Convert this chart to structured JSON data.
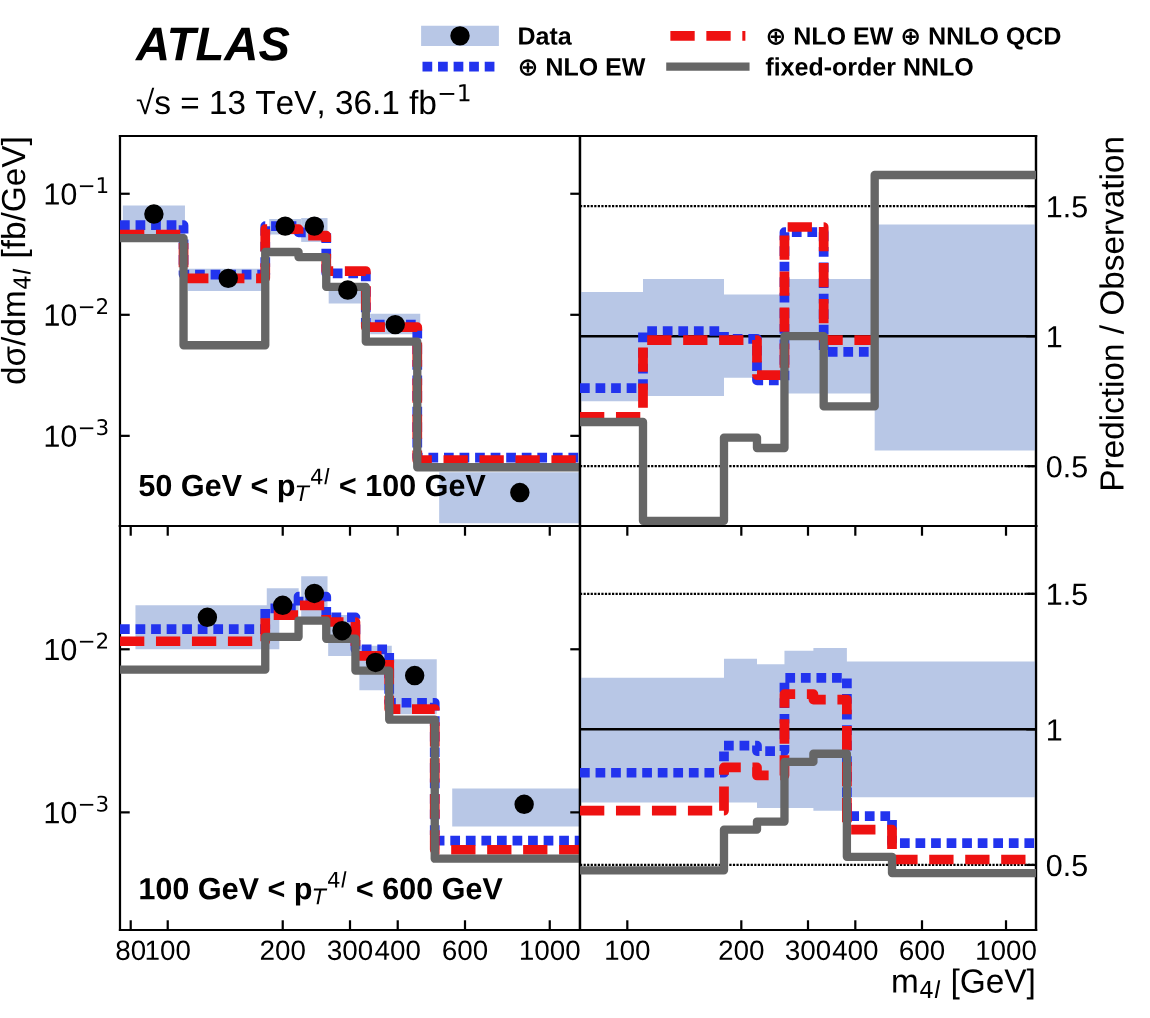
{
  "chart_data": [
    {
      "type": "step",
      "title": "ATLAS",
      "subtitle": "√s = 13 TeV, 36.1 fb$^{−1}$",
      "ylabel": "dσ/dm$_{4l}$ [fb/GeV]",
      "legend": "top",
      "log": "xy",
      "tick_labels": "y",
      "xlim": [
        75,
        1200
      ],
      "ylim": [
        0.00018,
        0.3
      ],
      "yticks": [
        {
          "value": 0.1,
          "label": "10$^{−1}$"
        },
        {
          "value": 0.01,
          "label": "10$^{−2}$"
        },
        {
          "value": 0.001,
          "label": "10$^{−3}$"
        }
      ],
      "annotations": [
        "50 GeV < p$_{T}$$^{4l}$ < 100 GeV"
      ],
      "series": [
        {
          "name": "Data",
          "type": "scatter",
          "marker": "circle",
          "color": "#000000",
          "x": [
            92,
            144,
            203,
            242,
            296,
            394,
            835
          ],
          "values": [
            0.068,
            0.02,
            0.054,
            0.054,
            0.016,
            0.0083,
            0.00034
          ],
          "errors": [
            [
              0.041,
              0.08
            ],
            [
              0.0157,
              0.024
            ],
            [
              0.046,
              0.062
            ],
            [
              0.04,
              0.063
            ],
            [
              0.0124,
              0.018
            ],
            [
              0.0069,
              0.0102
            ],
            [
              0.00019,
              0.0005
            ]
          ]
        },
        {
          "name": "⊕ NLO EW",
          "type": "step",
          "color": "#2233ee",
          "line_style": "dotted",
          "x": [
            75,
            110,
            180,
            220,
            260,
            330,
            450,
            1200
          ],
          "values": [
            0.055,
            0.0215,
            0.054,
            0.048,
            0.022,
            0.0083,
            0.00066,
            0.00066
          ]
        },
        {
          "name": "⊕ NLO EW ⊕ NNLO QCD",
          "type": "step",
          "color": "#ee1111",
          "line_style": "dashed",
          "x": [
            75,
            110,
            180,
            220,
            260,
            330,
            450,
            1200
          ],
          "values": [
            0.046,
            0.02,
            0.051,
            0.045,
            0.023,
            0.0079,
            0.00063,
            0.00063
          ]
        },
        {
          "name": "fixed-order NNLO",
          "type": "step",
          "color": "#666666",
          "line_style": "solid",
          "x": [
            75,
            110,
            180,
            220,
            260,
            330,
            450,
            1200
          ],
          "values": [
            0.043,
            0.0056,
            0.033,
            0.03,
            0.017,
            0.006,
            0.00055,
            0.00055
          ]
        }
      ]
    },
    {
      "type": "step",
      "y2label": "Prediction / Observation",
      "log": "x",
      "tick_labels": "y",
      "xlim": [
        75,
        1200
      ],
      "y2lim": [
        0.27,
        1.77
      ],
      "y2ticks": [
        0.5,
        1,
        1.5
      ],
      "ref_lines": [
        {
          "axis": "y2",
          "value": 0.5,
          "color": "#000000",
          "line_style": "dotted"
        },
        {
          "axis": "y2",
          "value": 1.5,
          "color": "#000000",
          "line_style": "dotted"
        }
      ],
      "series": [
        {
          "axis": "y2",
          "color": "#000000",
          "line_style": "solid",
          "x": [
            75,
            110,
            180,
            220,
            260,
            330,
            450,
            1200
          ],
          "values": [
            1,
            1,
            1,
            1,
            1,
            1,
            1,
            1
          ],
          "lower": [
            0.75,
            0.77,
            0.84,
            0.84,
            0.78,
            0.78,
            0.56,
            0.56
          ],
          "upper": [
            1.17,
            1.22,
            1.16,
            1.16,
            1.22,
            1.22,
            1.43,
            1.43
          ]
        },
        {
          "type": "step",
          "axis": "y2",
          "color": "#2233ee",
          "line_style": "dotted",
          "x": [
            75,
            110,
            180,
            220,
            260,
            330,
            450
          ],
          "values": [
            0.8,
            1.02,
            0.99,
            0.83,
            1.4,
            0.94,
            0.94
          ]
        },
        {
          "type": "step",
          "axis": "y2",
          "color": "#ee1111",
          "line_style": "dashed",
          "x": [
            75,
            110,
            180,
            220,
            260,
            330,
            450
          ],
          "values": [
            0.69,
            0.985,
            0.985,
            0.85,
            1.42,
            0.985,
            0.985
          ]
        },
        {
          "type": "step",
          "axis": "y2",
          "color": "#666666",
          "line_style": "solid",
          "x": [
            75,
            110,
            180,
            220,
            260,
            330,
            450,
            1200
          ],
          "values": [
            0.67,
            0.29,
            0.61,
            0.57,
            1.0,
            0.73,
            1.62,
            1.62
          ]
        }
      ]
    },
    {
      "type": "step",
      "log": "xy",
      "xlim": [
        75,
        1200
      ],
      "ylim": [
        0.00019,
        0.057
      ],
      "xticks": [
        80,
        100,
        200,
        300,
        400,
        600,
        1000
      ],
      "yticks": [
        {
          "value": 0.01,
          "label": "10$^{−2}$"
        },
        {
          "value": 0.001,
          "label": "10$^{−3}$"
        }
      ],
      "annotations": [
        "100 GeV < p$_{T}$$^{4l}$ < 600 GeV"
      ],
      "series": [
        {
          "type": "scatter",
          "marker": "circle",
          "color": "#000000",
          "x": [
            127,
            200,
            242,
            286,
            350,
            443,
            857
          ],
          "values": [
            0.0157,
            0.0186,
            0.022,
            0.013,
            0.0083,
            0.0069,
            0.00112
          ],
          "errors": [
            [
              0.01,
              0.0186
            ],
            [
              0.0154,
              0.0237
            ],
            [
              0.0154,
              0.028
            ],
            [
              0.0091,
              0.0162
            ],
            [
              0.0056,
              0.0105
            ],
            [
              0.004,
              0.0087
            ],
            [
              0.00082,
              0.0014
            ]
          ]
        },
        {
          "type": "step",
          "color": "#2233ee",
          "line_style": "dotted",
          "x": [
            75,
            180,
            220,
            260,
            310,
            380,
            500,
            1200
          ],
          "values": [
            0.0133,
            0.0178,
            0.021,
            0.0157,
            0.01,
            0.0047,
            0.00067,
            0.00067
          ]
        },
        {
          "type": "step",
          "color": "#ee1111",
          "line_style": "dashed",
          "x": [
            75,
            180,
            220,
            260,
            310,
            380,
            500,
            1200
          ],
          "values": [
            0.0112,
            0.0162,
            0.0186,
            0.0147,
            0.0091,
            0.0043,
            0.00059,
            0.00059
          ]
        },
        {
          "type": "step",
          "color": "#666666",
          "line_style": "solid",
          "x": [
            75,
            180,
            220,
            260,
            310,
            380,
            500,
            1200
          ],
          "values": [
            0.0075,
            0.0119,
            0.015,
            0.0116,
            0.0074,
            0.0037,
            0.00052,
            0.00052
          ]
        }
      ]
    },
    {
      "type": "step",
      "xlabel": "m$_{4l}$ [GeV]",
      "log": "x",
      "xlim": [
        75,
        1200
      ],
      "y2lim": [
        0.26,
        1.75
      ],
      "y2ticks": [
        0.5,
        1,
        1.5
      ],
      "xticks": [
        100,
        200,
        300,
        400,
        600,
        1000
      ],
      "ref_lines": [
        {
          "axis": "y2",
          "value": 0.5,
          "color": "#000000",
          "line_style": "dotted"
        },
        {
          "axis": "y2",
          "value": 1.5,
          "color": "#000000",
          "line_style": "dotted"
        }
      ],
      "series": [
        {
          "axis": "y2",
          "color": "#000000",
          "line_style": "solid",
          "x": [
            75,
            180,
            220,
            260,
            310,
            380,
            500,
            1200
          ],
          "values": [
            1,
            1,
            1,
            1,
            1,
            1,
            1,
            1
          ],
          "lower": [
            0.73,
            0.73,
            0.71,
            0.71,
            0.7,
            0.75,
            0.75,
            0.75
          ],
          "upper": [
            1.19,
            1.26,
            1.24,
            1.29,
            1.3,
            1.25,
            1.25,
            1.25
          ]
        },
        {
          "axis": "y2",
          "color": "#2233ee",
          "line_style": "dotted",
          "x": [
            75,
            180,
            220,
            260,
            310,
            380,
            500,
            1200
          ],
          "values": [
            0.84,
            0.94,
            0.92,
            1.19,
            1.19,
            0.68,
            0.58,
            0.58
          ]
        },
        {
          "type": "step",
          "axis": "y2",
          "color": "#ee1111",
          "line_style": "dashed",
          "x": [
            75,
            180,
            220,
            260,
            310,
            380,
            500,
            1200
          ],
          "values": [
            0.7,
            0.86,
            0.83,
            1.13,
            1.11,
            0.63,
            0.52,
            0.52
          ]
        },
        {
          "type": "step",
          "axis": "y2",
          "color": "#666666",
          "line_style": "solid",
          "x": [
            75,
            180,
            220,
            260,
            310,
            380,
            500,
            1200
          ],
          "values": [
            0.48,
            0.63,
            0.66,
            0.88,
            0.91,
            0.53,
            0.47,
            0.47
          ]
        }
      ]
    }
  ]
}
